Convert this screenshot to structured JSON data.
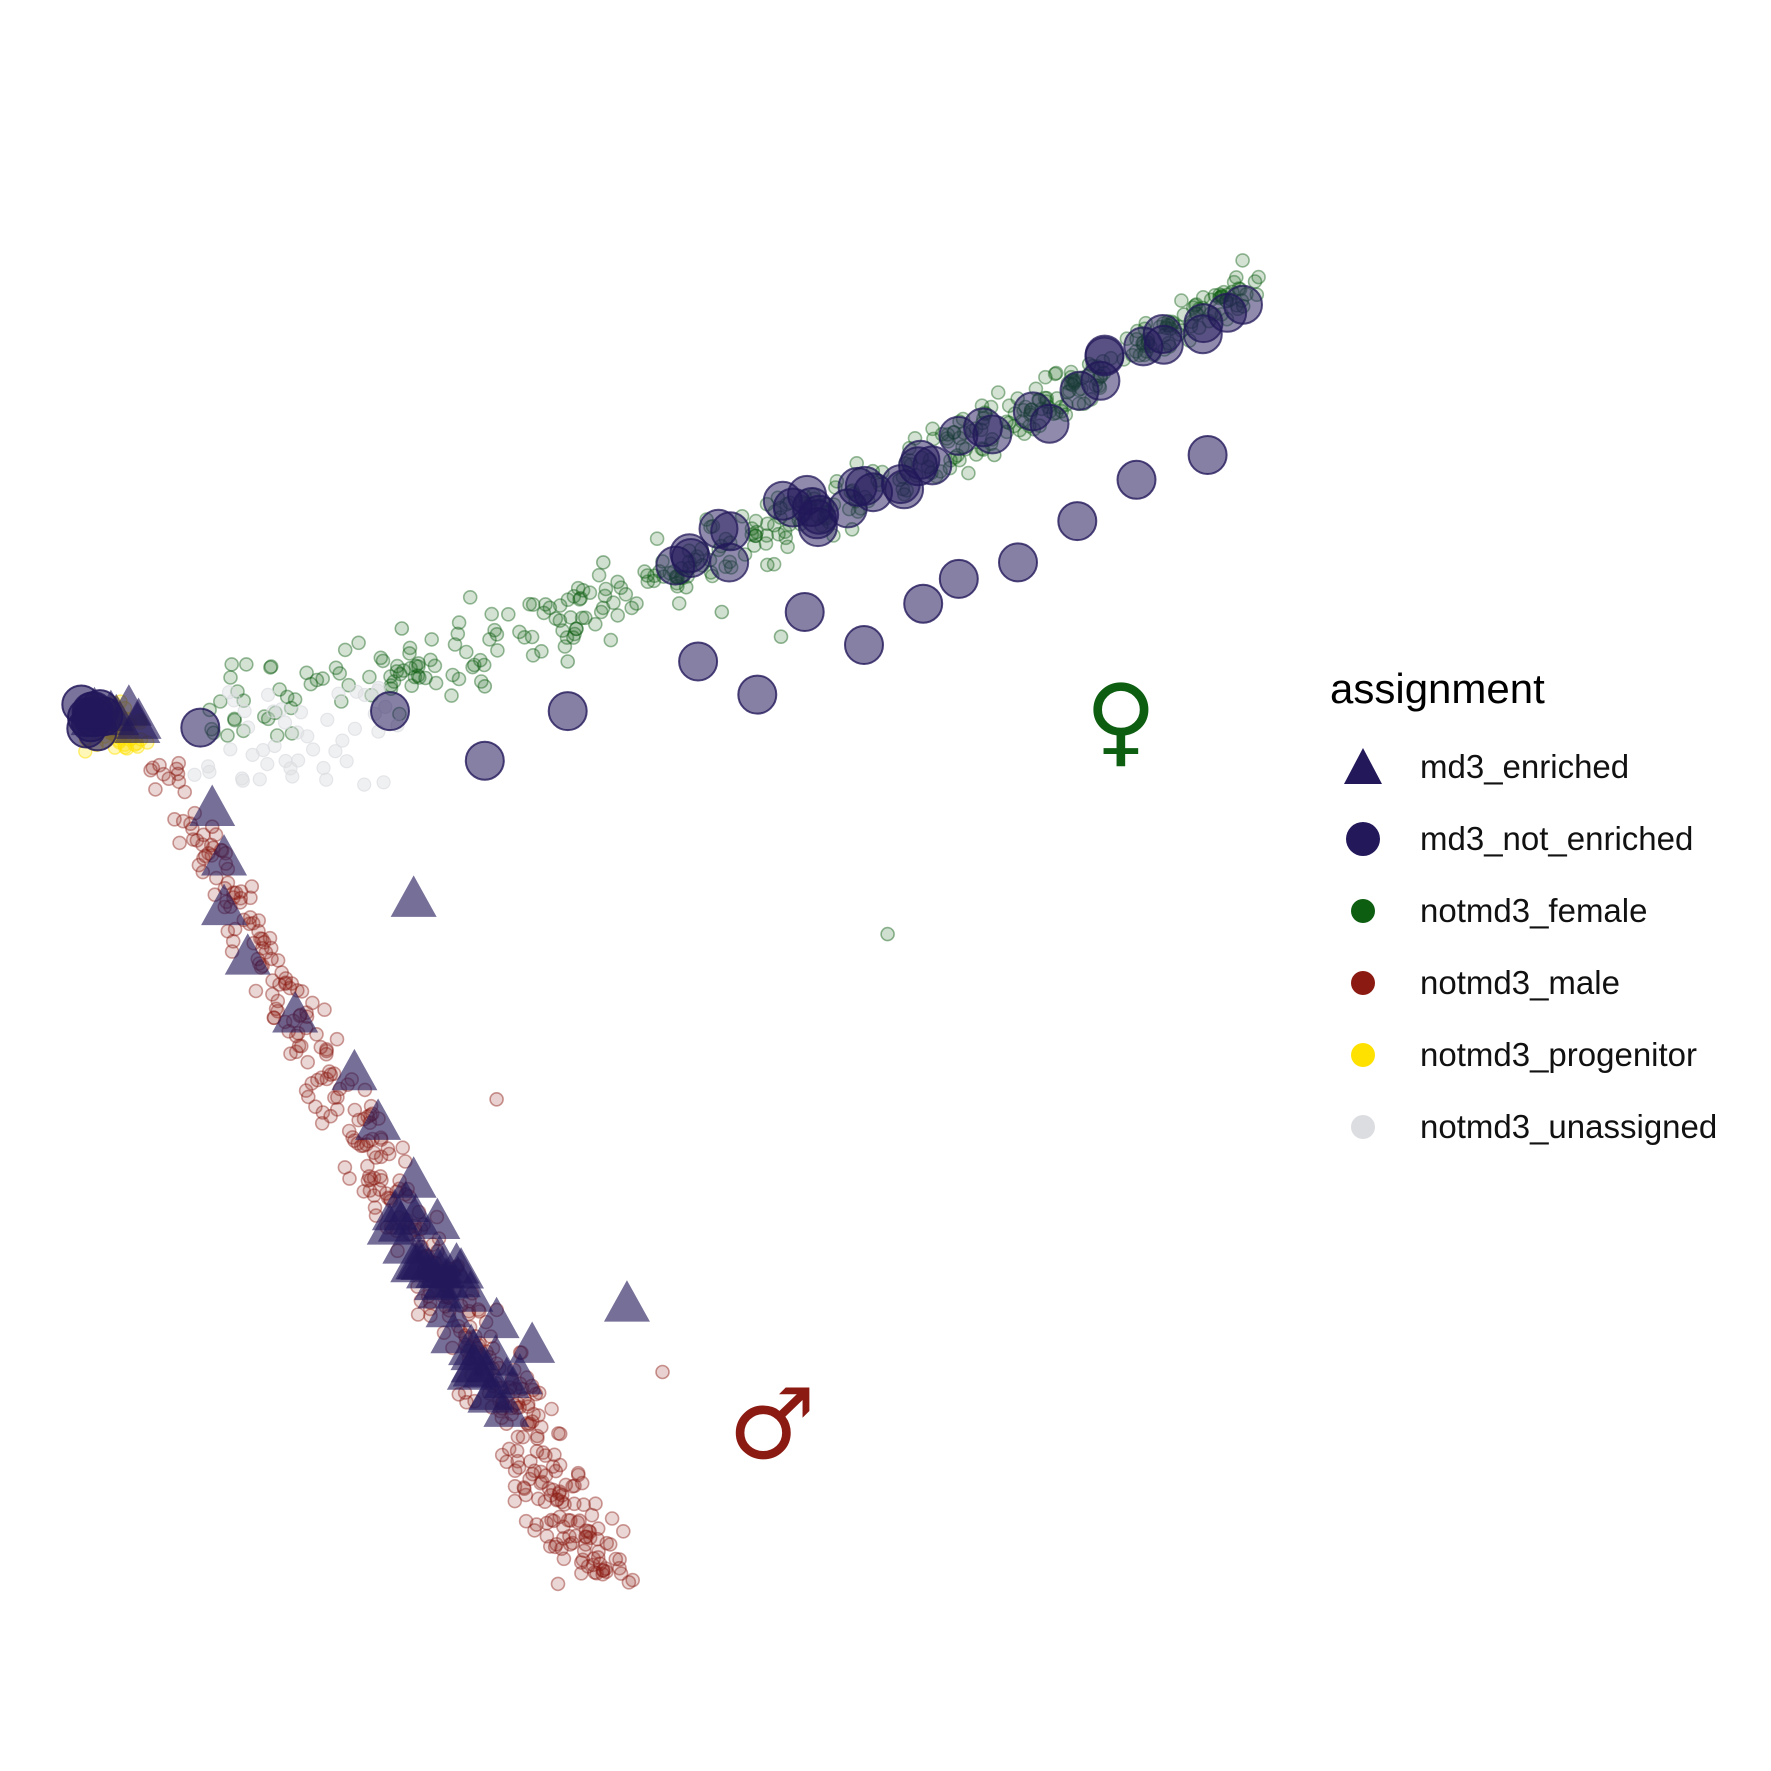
{
  "chart_data": {
    "type": "scatter",
    "title": "",
    "xlabel": "",
    "ylabel": "",
    "axes_visible": false,
    "grid": false,
    "legend": {
      "title": "assignment",
      "placement": "right",
      "entries": [
        {
          "label": "md3_enriched",
          "shape": "triangle",
          "color": "#22185a"
        },
        {
          "label": "md3_not_enriched",
          "shape": "circle-large",
          "color": "#22185a"
        },
        {
          "label": "notmd3_female",
          "shape": "circle",
          "color": "#0e5e12"
        },
        {
          "label": "notmd3_male",
          "shape": "circle",
          "color": "#8b1a12"
        },
        {
          "label": "notmd3_progenitor",
          "shape": "circle",
          "color": "#ffe100"
        },
        {
          "label": "notmd3_unassigned",
          "shape": "circle",
          "color": "#dcdde1"
        }
      ]
    },
    "annotations": [
      {
        "text": "♀",
        "meaning": "female",
        "color": "#0e5e12"
      },
      {
        "text": "♂",
        "meaning": "male",
        "color": "#8b1a12"
      }
    ],
    "series": [
      {
        "name": "notmd3_female",
        "note": "branch from (0,0) toward (1,0.55), upper-right; outlier near (0.70,-0.25)",
        "points": [
          [
            0.3,
            0.06
          ],
          [
            0.28,
            0.12
          ],
          [
            0.35,
            0.05
          ],
          [
            0.42,
            0.08
          ],
          [
            0.45,
            0.2
          ],
          [
            0.52,
            0.17
          ],
          [
            0.55,
            0.14
          ],
          [
            0.6,
            0.11
          ],
          [
            0.62,
            0.28
          ],
          [
            0.66,
            0.24
          ],
          [
            0.7,
            0.3
          ],
          [
            0.74,
            0.35
          ],
          [
            0.78,
            0.33
          ],
          [
            0.83,
            0.38
          ],
          [
            0.86,
            0.44
          ],
          [
            0.9,
            0.47
          ],
          [
            0.94,
            0.5
          ],
          [
            0.97,
            0.52
          ],
          [
            1.0,
            0.54
          ],
          [
            0.99,
            0.51
          ],
          [
            0.69,
            -0.25
          ]
        ]
      },
      {
        "name": "notmd3_male",
        "note": "branch from (0,0) down toward (0.45,-1.05)",
        "points": [
          [
            0.09,
            -0.05
          ],
          [
            0.12,
            -0.12
          ],
          [
            0.14,
            -0.2
          ],
          [
            0.17,
            -0.28
          ],
          [
            0.2,
            -0.35
          ],
          [
            0.22,
            -0.42
          ],
          [
            0.24,
            -0.5
          ],
          [
            0.27,
            -0.57
          ],
          [
            0.3,
            -0.64
          ],
          [
            0.33,
            -0.7
          ],
          [
            0.36,
            -0.77
          ],
          [
            0.39,
            -0.84
          ],
          [
            0.41,
            -0.9
          ],
          [
            0.43,
            -0.96
          ],
          [
            0.45,
            -1.02
          ],
          [
            0.5,
            -0.78
          ],
          [
            0.36,
            -0.45
          ]
        ]
      },
      {
        "name": "notmd3_progenitor",
        "note": "cluster at apex",
        "points": [
          [
            0.02,
            0.02
          ],
          [
            0.05,
            0.0
          ],
          [
            0.07,
            0.02
          ]
        ]
      },
      {
        "name": "notmd3_unassigned",
        "note": "sparse near apex",
        "points": [
          [
            0.08,
            0.03
          ],
          [
            0.12,
            0.04
          ],
          [
            0.18,
            -0.02
          ],
          [
            0.24,
            -0.04
          ]
        ]
      },
      {
        "name": "md3_not_enriched",
        "note": "large circles along female branch",
        "points": [
          [
            0.02,
            0.02
          ],
          [
            0.11,
            0.0
          ],
          [
            0.27,
            0.02
          ],
          [
            0.35,
            -0.04
          ],
          [
            0.42,
            0.02
          ],
          [
            0.53,
            0.08
          ],
          [
            0.58,
            0.04
          ],
          [
            0.62,
            0.14
          ],
          [
            0.67,
            0.1
          ],
          [
            0.72,
            0.15
          ],
          [
            0.75,
            0.18
          ],
          [
            0.8,
            0.2
          ],
          [
            0.85,
            0.25
          ],
          [
            0.9,
            0.3
          ],
          [
            0.96,
            0.33
          ]
        ]
      },
      {
        "name": "md3_enriched",
        "note": "large triangles along male branch",
        "points": [
          [
            0.02,
            0.01
          ],
          [
            0.12,
            -0.1
          ],
          [
            0.13,
            -0.16
          ],
          [
            0.13,
            -0.22
          ],
          [
            0.29,
            -0.21
          ],
          [
            0.15,
            -0.28
          ],
          [
            0.19,
            -0.35
          ],
          [
            0.24,
            -0.42
          ],
          [
            0.26,
            -0.48
          ],
          [
            0.29,
            -0.55
          ],
          [
            0.31,
            -0.6
          ],
          [
            0.33,
            -0.66
          ],
          [
            0.36,
            -0.72
          ],
          [
            0.39,
            -0.75
          ],
          [
            0.47,
            -0.7
          ]
        ]
      }
    ]
  }
}
